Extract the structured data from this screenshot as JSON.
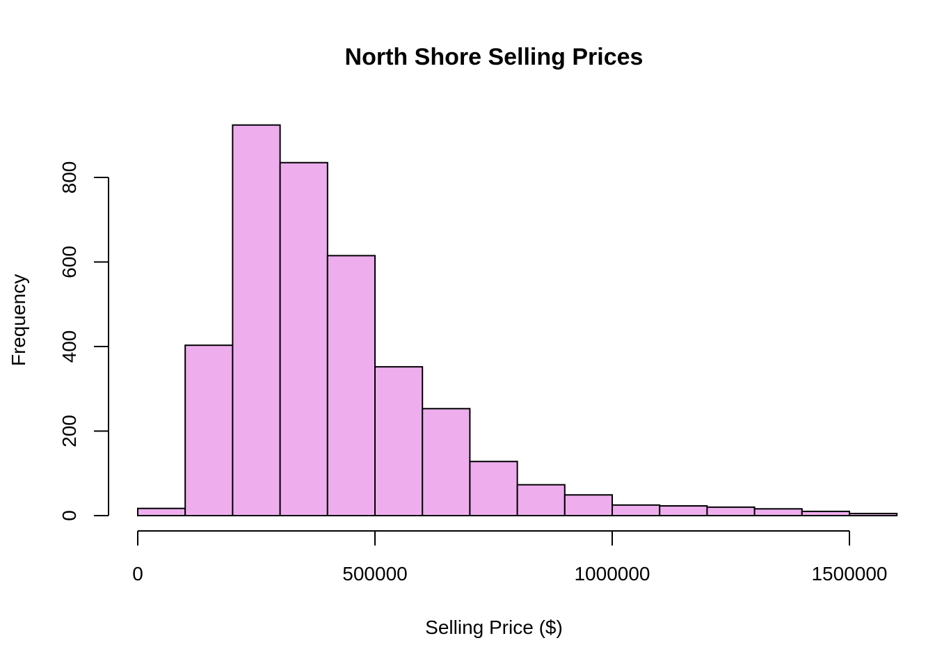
{
  "chart_data": {
    "type": "bar",
    "title": "North Shore Selling Prices",
    "xlabel": "Selling Price ($)",
    "ylabel": "Frequency",
    "bar_color": "#EEAEEE",
    "bin_edges": [
      0,
      100000,
      200000,
      300000,
      400000,
      500000,
      600000,
      700000,
      800000,
      900000,
      1000000,
      1100000,
      1200000,
      1300000,
      1400000,
      1500000,
      1600000
    ],
    "values": [
      17,
      403,
      924,
      835,
      615,
      352,
      253,
      128,
      73,
      49,
      25,
      23,
      20,
      16,
      10,
      5
    ],
    "xlim": [
      0,
      1600000
    ],
    "ylim": [
      0,
      924
    ],
    "x_ticks": [
      0,
      500000,
      1000000,
      1500000
    ],
    "x_tick_labels": [
      "0",
      "500000",
      "1000000",
      "1500000"
    ],
    "y_ticks": [
      0,
      200,
      400,
      600,
      800
    ],
    "y_tick_labels": [
      "0",
      "200",
      "400",
      "600",
      "800"
    ],
    "grid": false
  }
}
